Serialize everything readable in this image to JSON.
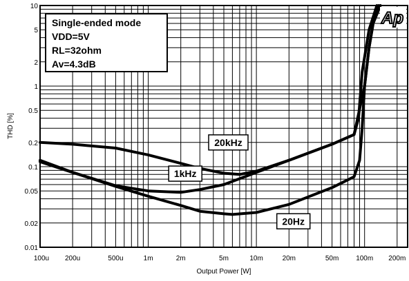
{
  "chart_data": {
    "type": "line",
    "xlabel": "Output Power [W]",
    "ylabel": "THD [%]",
    "xscale": "log",
    "yscale": "log",
    "xlim": [
      0.0001,
      0.25
    ],
    "ylim": [
      0.01,
      10
    ],
    "grid": true,
    "x_ticks": [
      {
        "value": 0.0001,
        "label": "100u"
      },
      {
        "value": 0.0002,
        "label": "200u"
      },
      {
        "value": 0.0005,
        "label": "500u"
      },
      {
        "value": 0.001,
        "label": "1m"
      },
      {
        "value": 0.002,
        "label": "2m"
      },
      {
        "value": 0.005,
        "label": "5m"
      },
      {
        "value": 0.01,
        "label": "10m"
      },
      {
        "value": 0.02,
        "label": "20m"
      },
      {
        "value": 0.05,
        "label": "50m"
      },
      {
        "value": 0.1,
        "label": "100m"
      },
      {
        "value": 0.2,
        "label": "200m"
      }
    ],
    "y_ticks": [
      {
        "value": 0.01,
        "label": "0.01"
      },
      {
        "value": 0.02,
        "label": "0.02"
      },
      {
        "value": 0.05,
        "label": "0.05"
      },
      {
        "value": 0.1,
        "label": "0.1"
      },
      {
        "value": 0.2,
        "label": "0.2"
      },
      {
        "value": 0.5,
        "label": "0.5"
      },
      {
        "value": 1,
        "label": "1"
      },
      {
        "value": 2,
        "label": "2"
      },
      {
        "value": 5,
        "label": "5"
      },
      {
        "value": 10,
        "label": "10"
      }
    ],
    "info_box": [
      "Single-ended mode",
      "VDD=5V",
      "RL=32ohm",
      "Av=4.3dB"
    ],
    "logo": "Ap",
    "series": [
      {
        "name": "20kHz",
        "x": [
          0.0001,
          0.0002,
          0.0005,
          0.001,
          0.002,
          0.003,
          0.005,
          0.007,
          0.01,
          0.02,
          0.05,
          0.08,
          0.088,
          0.095,
          0.11,
          0.13
        ],
        "y": [
          0.2,
          0.19,
          0.17,
          0.14,
          0.11,
          0.095,
          0.083,
          0.08,
          0.088,
          0.12,
          0.19,
          0.25,
          0.4,
          1.5,
          5,
          10
        ]
      },
      {
        "name": "1kHz",
        "x": [
          0.0001,
          0.0002,
          0.0005,
          0.001,
          0.002,
          0.003,
          0.005,
          0.01,
          0.02,
          0.05,
          0.08,
          0.1,
          0.11,
          0.12,
          0.135
        ],
        "y": [
          0.12,
          0.085,
          0.058,
          0.05,
          0.048,
          0.052,
          0.06,
          0.085,
          0.12,
          0.19,
          0.25,
          1.0,
          3.0,
          6.0,
          10
        ]
      },
      {
        "name": "20Hz",
        "x": [
          0.0001,
          0.0002,
          0.0005,
          0.001,
          0.002,
          0.003,
          0.005,
          0.006,
          0.01,
          0.02,
          0.05,
          0.08,
          0.09,
          0.095,
          0.1,
          0.11,
          0.12,
          0.14
        ],
        "y": [
          0.115,
          0.085,
          0.057,
          0.043,
          0.033,
          0.028,
          0.026,
          0.0255,
          0.027,
          0.034,
          0.055,
          0.075,
          0.12,
          0.3,
          1.0,
          3.0,
          6.0,
          10
        ]
      }
    ],
    "series_labels": [
      {
        "text": "20kHz",
        "x": 0.0055,
        "y": 0.2
      },
      {
        "text": "1kHz",
        "x": 0.0022,
        "y": 0.082
      },
      {
        "text": "20Hz",
        "x": 0.022,
        "y": 0.021
      }
    ]
  }
}
